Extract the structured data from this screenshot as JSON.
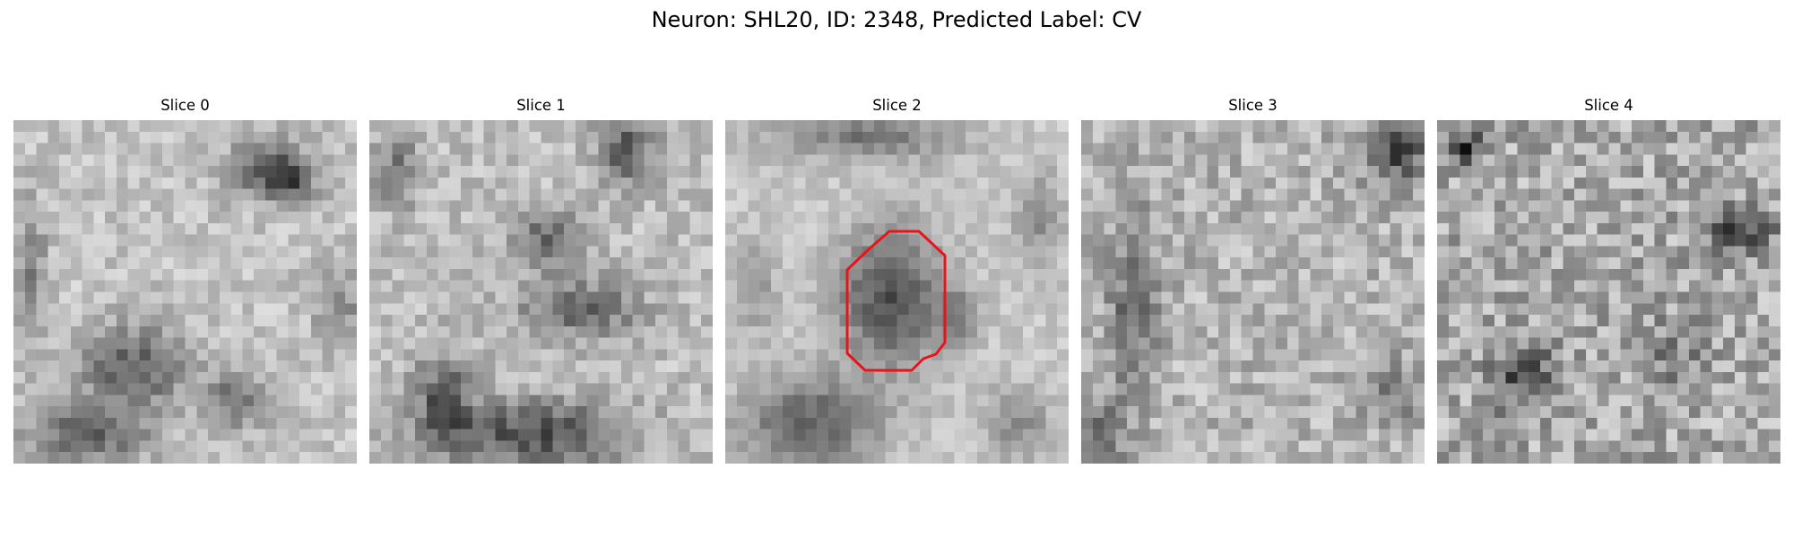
{
  "figure": {
    "title": "Neuron: SHL20, ID: 2348, Predicted Label: CV"
  },
  "slices": [
    {
      "title": "Slice 0"
    },
    {
      "title": "Slice 1"
    },
    {
      "title": "Slice 2"
    },
    {
      "title": "Slice 3"
    },
    {
      "title": "Slice 4"
    }
  ],
  "colors": {
    "colormap": "gray",
    "roi_outline": "#ff0000",
    "background": "#ffffff"
  }
}
